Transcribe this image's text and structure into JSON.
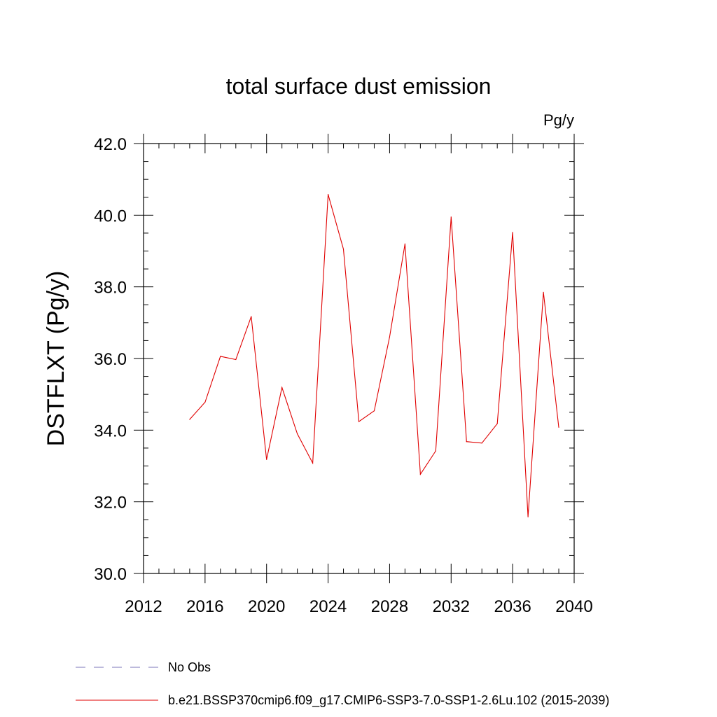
{
  "chart_data": {
    "type": "line",
    "title": "total surface dust emission",
    "units": "Pg/y",
    "ylabel": "DSTFLXT  (Pg/y)",
    "xlabel": "",
    "xlim": [
      2012,
      2040
    ],
    "ylim": [
      30.0,
      42.0
    ],
    "xticks": [
      "2012",
      "2016",
      "2020",
      "2024",
      "2028",
      "2032",
      "2036",
      "2040"
    ],
    "yticks": [
      "30.0",
      "32.0",
      "34.0",
      "36.0",
      "38.0",
      "40.0",
      "42.0"
    ],
    "grid": false,
    "legend_position": "bottom-left",
    "series": [
      {
        "name": "No Obs",
        "style": "dashed",
        "color": "#7b74b8",
        "x": [],
        "y": []
      },
      {
        "name": "b.e21.BSSP370cmip6.f09_g17.CMIP6-SSP3-7.0-SSP1-2.6Lu.102 (2015-2039)",
        "style": "solid",
        "color": "#e00000",
        "x": [
          2015,
          2016,
          2017,
          2018,
          2019,
          2020,
          2021,
          2022,
          2023,
          2024,
          2025,
          2026,
          2027,
          2028,
          2029,
          2030,
          2031,
          2032,
          2033,
          2034,
          2035,
          2036,
          2037,
          2038,
          2039
        ],
        "y": [
          34.3,
          34.78,
          36.06,
          35.97,
          37.17,
          33.18,
          35.19,
          33.9,
          33.08,
          40.58,
          39.05,
          34.24,
          34.54,
          36.6,
          39.2,
          32.77,
          33.42,
          39.95,
          33.68,
          33.64,
          34.18,
          39.52,
          31.58,
          37.85,
          34.08
        ]
      }
    ]
  }
}
